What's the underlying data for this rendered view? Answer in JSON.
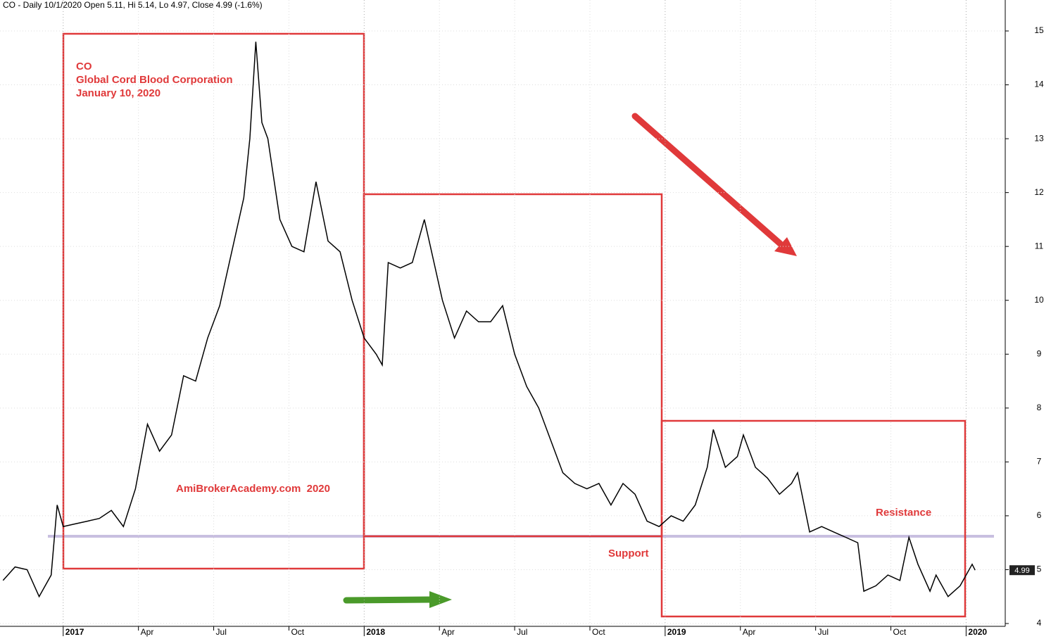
{
  "chart_data": {
    "type": "line",
    "title": "CO - Daily 10/1/2020 Open 5.11, Hi 5.14, Lo 4.97, Close 4.99 (-1.6%)",
    "annotations": {
      "ticker": "CO",
      "company": "Global Cord Blood Corporation",
      "date": "January 10, 2020",
      "watermark": "AmiBrokerAcademy.com  2020",
      "support": "Support",
      "resistance": "Resistance"
    },
    "last_price": 4.99,
    "color": "#000000",
    "grid": true,
    "xlim": [
      2016.79,
      2020.13
    ],
    "xticks": [
      {
        "value": 2017,
        "label": "2017"
      },
      {
        "value": 2017.25,
        "label": "Apr"
      },
      {
        "value": 2017.5,
        "label": "Jul"
      },
      {
        "value": 2017.75,
        "label": "Oct"
      },
      {
        "value": 2018,
        "label": "2018"
      },
      {
        "value": 2018.25,
        "label": "Apr"
      },
      {
        "value": 2018.5,
        "label": "Jul"
      },
      {
        "value": 2018.75,
        "label": "Oct"
      },
      {
        "value": 2019,
        "label": "2019"
      },
      {
        "value": 2019.25,
        "label": "Apr"
      },
      {
        "value": 2019.5,
        "label": "Jul"
      },
      {
        "value": 2019.75,
        "label": "Oct"
      },
      {
        "value": 2020,
        "label": "2020"
      }
    ],
    "ylim": [
      4,
      15
    ],
    "yticks": [
      4,
      5,
      6,
      7,
      8,
      9,
      10,
      11,
      12,
      13,
      14,
      15
    ],
    "x": [
      2016.8,
      2016.84,
      2016.88,
      2016.92,
      2016.96,
      2016.98,
      2017.0,
      2017.04,
      2017.08,
      2017.12,
      2017.16,
      2017.2,
      2017.24,
      2017.28,
      2017.32,
      2017.36,
      2017.4,
      2017.44,
      2017.48,
      2017.52,
      2017.56,
      2017.6,
      2017.62,
      2017.64,
      2017.66,
      2017.68,
      2017.72,
      2017.76,
      2017.8,
      2017.84,
      2017.88,
      2017.92,
      2017.96,
      2018.0,
      2018.04,
      2018.06,
      2018.08,
      2018.12,
      2018.16,
      2018.2,
      2018.22,
      2018.26,
      2018.3,
      2018.34,
      2018.38,
      2018.42,
      2018.46,
      2018.5,
      2018.54,
      2018.58,
      2018.62,
      2018.66,
      2018.7,
      2018.74,
      2018.78,
      2018.82,
      2018.86,
      2018.9,
      2018.94,
      2018.98,
      2019.02,
      2019.06,
      2019.1,
      2019.14,
      2019.16,
      2019.2,
      2019.24,
      2019.26,
      2019.3,
      2019.34,
      2019.38,
      2019.42,
      2019.44,
      2019.48,
      2019.52,
      2019.56,
      2019.6,
      2019.64,
      2019.66,
      2019.7,
      2019.74,
      2019.78,
      2019.81,
      2019.84,
      2019.88,
      2019.9,
      2019.94,
      2019.98,
      2020.02,
      2020.03
    ],
    "values": [
      4.8,
      5.05,
      5.0,
      4.5,
      4.9,
      6.2,
      5.8,
      5.85,
      5.9,
      5.95,
      6.1,
      5.8,
      6.5,
      7.7,
      7.2,
      7.5,
      8.6,
      8.5,
      9.3,
      9.9,
      10.9,
      11.9,
      13.0,
      14.8,
      13.3,
      13.0,
      11.5,
      11.0,
      10.9,
      12.2,
      11.1,
      10.9,
      10.0,
      9.3,
      9.0,
      8.8,
      10.7,
      10.6,
      10.7,
      11.5,
      11.0,
      10.0,
      9.3,
      9.8,
      9.6,
      9.6,
      9.9,
      9.0,
      8.4,
      8.0,
      7.4,
      6.8,
      6.6,
      6.5,
      6.6,
      6.2,
      6.6,
      6.4,
      5.9,
      5.8,
      6.0,
      5.9,
      6.2,
      6.9,
      7.6,
      6.9,
      7.1,
      7.5,
      6.9,
      6.7,
      6.4,
      6.6,
      6.8,
      5.7,
      5.8,
      5.7,
      5.6,
      5.5,
      4.6,
      4.7,
      4.9,
      4.8,
      5.6,
      5.1,
      4.6,
      4.9,
      4.5,
      4.7,
      5.1,
      4.99
    ]
  }
}
